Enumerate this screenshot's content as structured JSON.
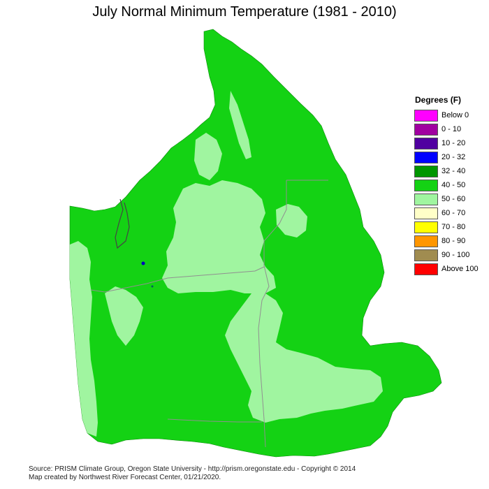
{
  "title": "July Normal Minimum Temperature (1981 - 2010)",
  "legend": {
    "title": "Degrees (F)",
    "items": [
      {
        "label": "Below 0",
        "color": "#ff00ff"
      },
      {
        "label": "0 - 10",
        "color": "#a000a0"
      },
      {
        "label": "10 - 20",
        "color": "#5000a0"
      },
      {
        "label": "20 - 32",
        "color": "#0000ff"
      },
      {
        "label": "32 - 40",
        "color": "#009600"
      },
      {
        "label": "40 - 50",
        "color": "#14d214"
      },
      {
        "label": "50 - 60",
        "color": "#a0f5a0"
      },
      {
        "label": "60 - 70",
        "color": "#ffffc8"
      },
      {
        "label": "70 - 80",
        "color": "#ffff00"
      },
      {
        "label": "80 - 90",
        "color": "#ff9600"
      },
      {
        "label": "90 - 100",
        "color": "#a08c50"
      },
      {
        "label": "Above 100",
        "color": "#ff0000"
      }
    ]
  },
  "footer": {
    "line1": "Source: PRISM Climate Group, Oregon State University - http://prism.oregonstate.edu - Copyright © 2014",
    "line2": "Map created by Northwest River Forecast Center, 01/21/2020."
  }
}
